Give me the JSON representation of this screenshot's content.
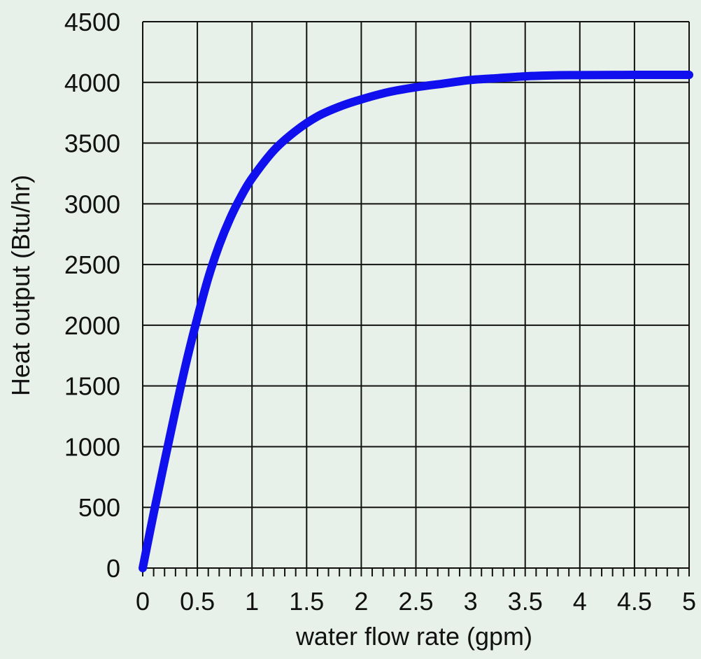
{
  "colors": {
    "background": "#e8f1e9",
    "grid": "#111111",
    "series": "#1010ee"
  },
  "chart_data": {
    "type": "line",
    "title": "",
    "xlabel": "water flow rate (gpm)",
    "ylabel": "Heat output (Btu/hr)",
    "xlim": [
      0,
      5
    ],
    "ylim": [
      0,
      4500
    ],
    "x_ticks": [
      "0",
      "0.5",
      "1",
      "1.5",
      "2",
      "2.5",
      "3",
      "3.5",
      "4",
      "4.5",
      "5"
    ],
    "y_ticks": [
      "0",
      "500",
      "1000",
      "1500",
      "2000",
      "2500",
      "3000",
      "3500",
      "4000",
      "4500"
    ],
    "grid": true,
    "legend": "none",
    "series": [
      {
        "color": "#1010ee",
        "x": [
          0,
          0.1,
          0.2,
          0.3,
          0.4,
          0.5,
          0.6,
          0.7,
          0.8,
          0.9,
          1.0,
          1.2,
          1.4,
          1.6,
          1.8,
          2.0,
          2.25,
          2.5,
          2.75,
          3.0,
          3.25,
          3.5,
          3.75,
          4.0,
          4.5,
          5.0
        ],
        "y": [
          0,
          450,
          880,
          1300,
          1700,
          2060,
          2390,
          2660,
          2880,
          3060,
          3210,
          3440,
          3600,
          3720,
          3800,
          3860,
          3920,
          3960,
          3990,
          4020,
          4035,
          4050,
          4058,
          4060,
          4062,
          4062
        ]
      }
    ]
  }
}
